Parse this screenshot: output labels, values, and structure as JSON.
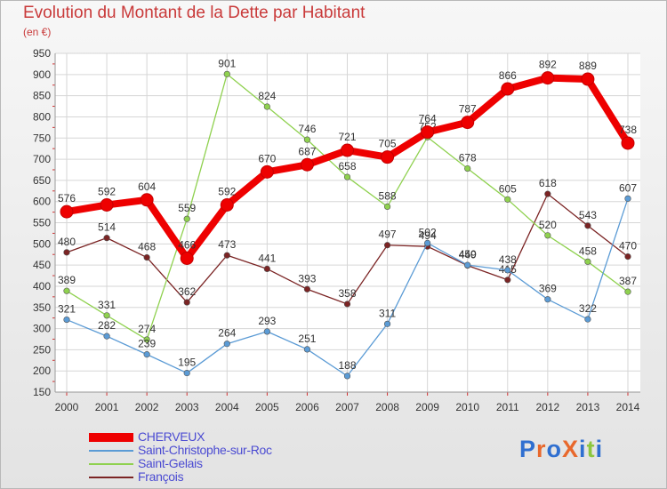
{
  "title": "Evolution du Montant de la Dette par Habitant",
  "subtitle": "(en €)",
  "logo": {
    "text": "ProXiti",
    "colors": [
      "#2f6fd0",
      "#e8682c",
      "#2f6fd0",
      "#e8682c",
      "#2f6fd0",
      "#8cc63f",
      "#2f6fd0"
    ]
  },
  "chart_data": {
    "type": "line",
    "title": "Evolution du Montant de la Dette par Habitant",
    "ylabel": "(en €)",
    "categories": [
      "2000",
      "2001",
      "2002",
      "2003",
      "2004",
      "2005",
      "2006",
      "2007",
      "2008",
      "2009",
      "2010",
      "2011",
      "2012",
      "2013",
      "2014"
    ],
    "ylim": [
      150,
      950
    ],
    "yticks": [
      "150",
      "200",
      "250",
      "300",
      "350",
      "400",
      "450",
      "500",
      "550",
      "600",
      "650",
      "700",
      "750",
      "800",
      "850",
      "900",
      "950"
    ],
    "grid": true,
    "legend": "bottom-left",
    "series": [
      {
        "name": "CHERVEUX",
        "color": "#ee0000",
        "values": [
          576,
          592,
          604,
          466,
          592,
          670,
          687,
          721,
          705,
          764,
          787,
          866,
          892,
          889,
          738
        ],
        "labels": [
          "576",
          "592",
          "604",
          "466",
          "592",
          "670",
          "687",
          "721",
          "705",
          "764",
          "787",
          "866",
          "892",
          "889",
          "738"
        ]
      },
      {
        "name": "Saint-Christophe-sur-Roc",
        "color": "#5b9bd5",
        "values": [
          321,
          282,
          239,
          195,
          264,
          293,
          251,
          188,
          311,
          502,
          450,
          438,
          369,
          322,
          607
        ],
        "labels": [
          "321",
          "282",
          "239",
          "195",
          "264",
          "293",
          "251",
          "188",
          "311",
          "502",
          "450",
          "438",
          "369",
          "322",
          "607"
        ]
      },
      {
        "name": "Saint-Gelais",
        "color": "#8fd14f",
        "values": [
          389,
          331,
          274,
          559,
          901,
          824,
          746,
          658,
          588,
          752,
          678,
          605,
          520,
          458,
          387
        ],
        "labels": [
          "389",
          "331",
          "274",
          "559",
          "901",
          "824",
          "746",
          "658",
          "588",
          "752",
          "678",
          "605",
          "520",
          "458",
          "387"
        ]
      },
      {
        "name": "François",
        "color": "#7b2424",
        "values": [
          480,
          514,
          468,
          362,
          473,
          441,
          393,
          358,
          497,
          494,
          449,
          415,
          618,
          543,
          470
        ],
        "labels": [
          "480",
          "514",
          "468",
          "362",
          "473",
          "441",
          "393",
          "358",
          "497",
          "494",
          "449",
          "415",
          "618",
          "543",
          "470"
        ]
      }
    ]
  }
}
